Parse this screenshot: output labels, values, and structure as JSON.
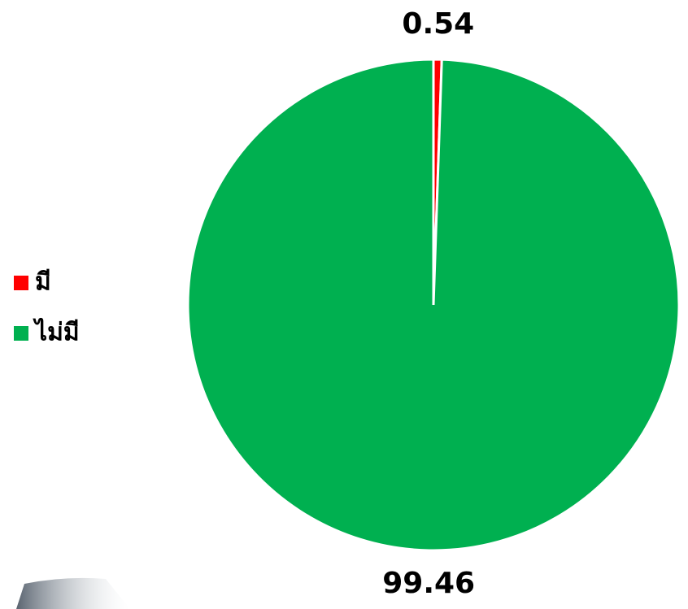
{
  "chart_data": {
    "type": "pie",
    "categories": [
      "มี",
      "ไม่มี"
    ],
    "values": [
      0.54,
      99.46
    ],
    "colors": [
      "#ff0000",
      "#00b050"
    ],
    "legend": "left"
  }
}
